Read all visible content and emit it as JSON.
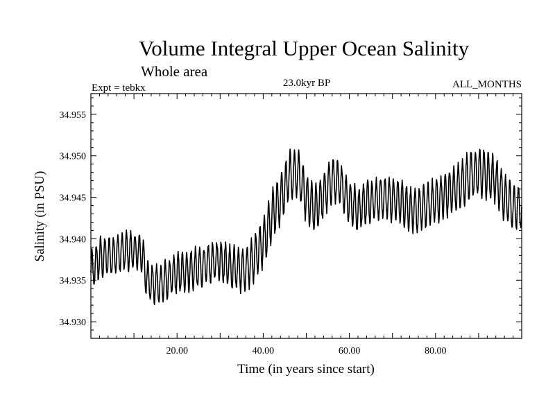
{
  "chart_data": {
    "type": "line",
    "title": "Volume Integral Upper Ocean Salinity",
    "subtitle": "Whole area",
    "expt_label": "Expt = tebkx",
    "period_label": "23.0kyr BP",
    "months_label": "ALL_MONTHS",
    "xlabel": "Time (in years since start)",
    "ylabel": "Salinity (in PSU)",
    "xlim": [
      0.0,
      100.0
    ],
    "ylim": [
      34.928,
      34.9575
    ],
    "x_ticks": [
      20,
      40,
      60,
      80
    ],
    "x_tick_labels": [
      "20.00",
      "40.00",
      "60.00",
      "80.00"
    ],
    "y_ticks": [
      34.93,
      34.935,
      34.94,
      34.945,
      34.95,
      34.955
    ],
    "y_tick_labels": [
      "34.930",
      "34.935",
      "34.940",
      "34.945",
      "34.950",
      "34.955"
    ],
    "grid": false,
    "series": [
      {
        "name": "Salinity",
        "samples_per_year": 12,
        "seasonal_amplitude": [
          [
            0,
            0.0023
          ],
          [
            12,
            0.0022
          ],
          [
            30,
            0.0023
          ],
          [
            42,
            0.0028
          ],
          [
            48,
            0.0028
          ],
          [
            60,
            0.0024
          ],
          [
            80,
            0.0025
          ],
          [
            90,
            0.0028
          ],
          [
            100,
            0.0026
          ]
        ],
        "trend": [
          [
            0,
            34.9358
          ],
          [
            2,
            34.9377
          ],
          [
            5,
            34.938
          ],
          [
            8,
            34.9385
          ],
          [
            10,
            34.9385
          ],
          [
            12,
            34.9383
          ],
          [
            12.5,
            34.936
          ],
          [
            14,
            34.9345
          ],
          [
            16,
            34.9345
          ],
          [
            20,
            34.9358
          ],
          [
            25,
            34.9365
          ],
          [
            30,
            34.9375
          ],
          [
            33,
            34.9365
          ],
          [
            36,
            34.9362
          ],
          [
            38,
            34.9378
          ],
          [
            40,
            34.9395
          ],
          [
            42,
            34.9428
          ],
          [
            44,
            34.9448
          ],
          [
            46,
            34.9475
          ],
          [
            48,
            34.948
          ],
          [
            49,
            34.9465
          ],
          [
            50,
            34.9448
          ],
          [
            52,
            34.9435
          ],
          [
            54,
            34.9452
          ],
          [
            56,
            34.9472
          ],
          [
            58,
            34.9465
          ],
          [
            60,
            34.9445
          ],
          [
            62,
            34.9435
          ],
          [
            64,
            34.9445
          ],
          [
            68,
            34.945
          ],
          [
            72,
            34.9445
          ],
          [
            75,
            34.9432
          ],
          [
            78,
            34.944
          ],
          [
            82,
            34.9452
          ],
          [
            86,
            34.9465
          ],
          [
            88,
            34.9478
          ],
          [
            91,
            34.948
          ],
          [
            94,
            34.947
          ],
          [
            96,
            34.945
          ],
          [
            98,
            34.9438
          ],
          [
            100,
            34.9438
          ]
        ]
      }
    ]
  }
}
